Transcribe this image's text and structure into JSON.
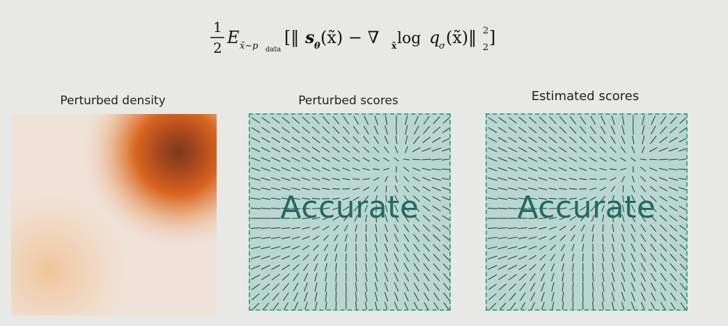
{
  "equation": {
    "frac_num": "1",
    "frac_den": "2",
    "E": "E",
    "subscript": "x̃∼p",
    "subscript_data": "data",
    "bracket_open": "[‖",
    "s": "s",
    "theta": "θ",
    "arg1": "(x̃) − ∇",
    "nabla_sub": "x̃",
    "log": " log ",
    "q": "q",
    "sigma": "σ",
    "arg2": "(x̃)‖",
    "sup": "2",
    "sub": "2",
    "bracket_close": "]"
  },
  "panels": {
    "density_title": "Perturbed density",
    "perturbed_scores_title": "Perturbed scores",
    "estimated_scores_title": "Estimated scores",
    "perturbed_overlay": "Accurate",
    "estimated_overlay": "Accurate"
  },
  "colors": {
    "density_peak": "#7a3a1c",
    "density_mid": "#d9651f",
    "panel_border": "#3aa58e",
    "panel_fill": "#b9d7d1",
    "overlay_text": "#1f6b5f"
  }
}
